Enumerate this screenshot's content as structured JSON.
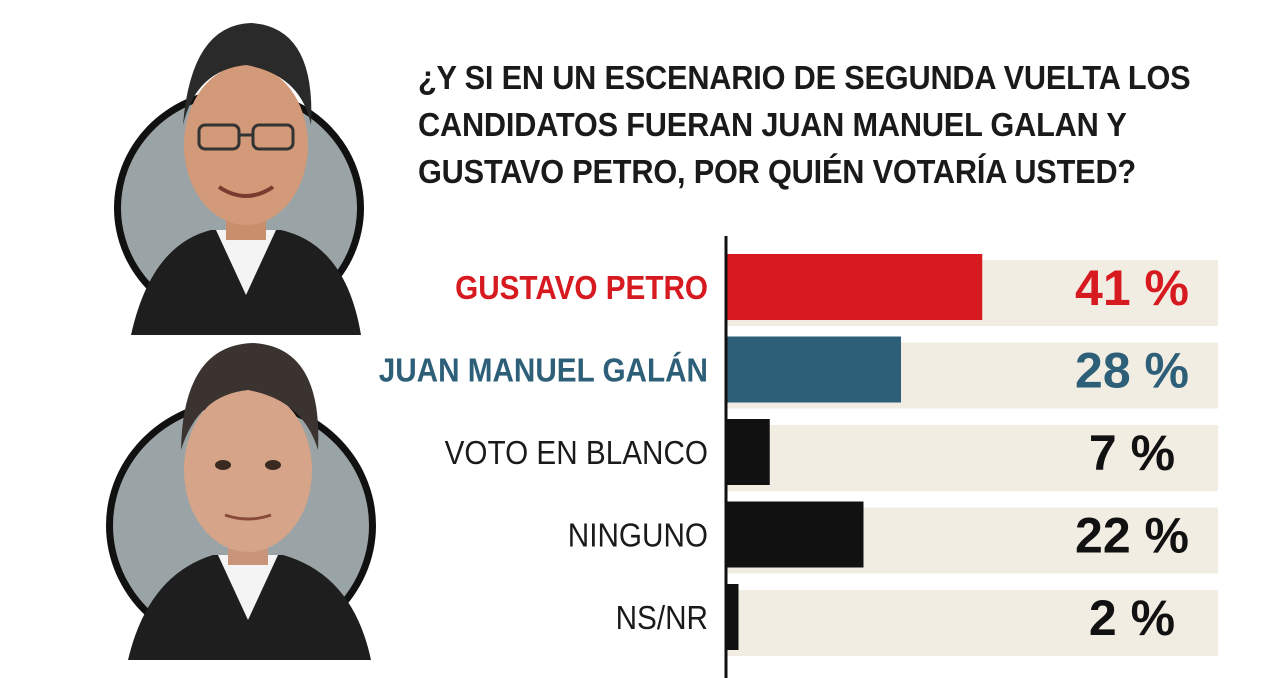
{
  "title_lines": [
    "¿Y SI EN UN ESCENARIO DE SEGUNDA VUELTA LOS",
    "CANDIDATOS FUERAN JUAN MANUEL GALAN Y",
    "GUSTAVO PETRO, POR QUIÉN VOTARÍA USTED?"
  ],
  "chart_data": {
    "type": "bar",
    "orientation": "horizontal",
    "title": "¿Y SI EN UN ESCENARIO DE SEGUNDA VUELTA LOS CANDIDATOS FUERAN JUAN MANUEL GALAN Y GUSTAVO PETRO, POR QUIÉN VOTARÍA USTED?",
    "xlim": [
      0,
      100
    ],
    "grid": false,
    "categories": [
      "GUSTAVO PETRO",
      "JUAN MANUEL GALÁN",
      "VOTO EN BLANCO",
      "NINGUNO",
      "NS/NR"
    ],
    "values": [
      41,
      28,
      7,
      22,
      2
    ],
    "value_labels": [
      "41 %",
      "28 %",
      "7 %",
      "22 %",
      "2 %"
    ],
    "colors": [
      "#d71a1f",
      "#2e5f78",
      "#111111",
      "#111111",
      "#111111"
    ],
    "label_bold": [
      true,
      true,
      false,
      false,
      false
    ],
    "track_color": "#f2ede3"
  },
  "portraits": [
    {
      "name": "portrait-gustavo-petro",
      "icon": "man-with-glasses-portrait"
    },
    {
      "name": "portrait-juan-manuel-galan",
      "icon": "man-portrait"
    }
  ]
}
